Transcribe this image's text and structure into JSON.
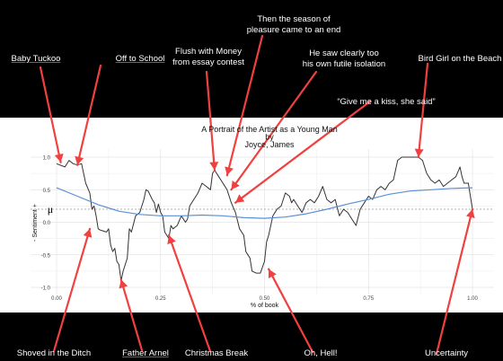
{
  "chart_data": {
    "type": "line",
    "title": "A Portrait of the Artist as a Young Man\nby\nJoyce, James",
    "xlabel": "% of book",
    "ylabel": "- Sentiment +",
    "xlim": [
      -0.05,
      1.05
    ],
    "ylim": [
      -1.08,
      1.12
    ],
    "xticks": [
      "0.00",
      "0.25",
      "0.50",
      "0.75",
      "1.00"
    ],
    "yticks": [
      "-1.0",
      "-0.5",
      "0.0",
      "0.5",
      "1.0"
    ],
    "grid": true,
    "mean_label": "μ",
    "mean_value": 0.2,
    "series": [
      {
        "style": "raw",
        "color": "#333333",
        "points": [
          [
            0.0,
            0.9
          ],
          [
            0.02,
            0.85
          ],
          [
            0.03,
            0.95
          ],
          [
            0.04,
            0.9
          ],
          [
            0.05,
            0.88
          ],
          [
            0.06,
            0.9
          ],
          [
            0.065,
            0.75
          ],
          [
            0.07,
            0.6
          ],
          [
            0.08,
            0.45
          ],
          [
            0.085,
            0.2
          ],
          [
            0.09,
            0.25
          ],
          [
            0.095,
            0.1
          ],
          [
            0.1,
            -0.1
          ],
          [
            0.105,
            -0.12
          ],
          [
            0.11,
            -0.13
          ],
          [
            0.12,
            -0.15
          ],
          [
            0.125,
            -0.1
          ],
          [
            0.13,
            -0.35
          ],
          [
            0.135,
            -0.45
          ],
          [
            0.14,
            -0.4
          ],
          [
            0.145,
            -0.6
          ],
          [
            0.15,
            -0.65
          ],
          [
            0.155,
            -0.9
          ],
          [
            0.16,
            -0.75
          ],
          [
            0.17,
            -0.55
          ],
          [
            0.175,
            -0.1
          ],
          [
            0.18,
            -0.15
          ],
          [
            0.19,
            0.1
          ],
          [
            0.2,
            0.15
          ],
          [
            0.21,
            0.35
          ],
          [
            0.215,
            0.5
          ],
          [
            0.22,
            0.48
          ],
          [
            0.23,
            0.35
          ],
          [
            0.235,
            0.3
          ],
          [
            0.24,
            0.15
          ],
          [
            0.245,
            0.28
          ],
          [
            0.25,
            0.15
          ],
          [
            0.255,
            0.1
          ],
          [
            0.26,
            -0.15
          ],
          [
            0.27,
            -0.25
          ],
          [
            0.275,
            -0.05
          ],
          [
            0.28,
            -0.1
          ],
          [
            0.29,
            -0.05
          ],
          [
            0.3,
            0.1
          ],
          [
            0.31,
            0.0
          ],
          [
            0.315,
            0.05
          ],
          [
            0.32,
            0.25
          ],
          [
            0.33,
            0.35
          ],
          [
            0.34,
            0.45
          ],
          [
            0.35,
            0.6
          ],
          [
            0.36,
            0.55
          ],
          [
            0.37,
            0.5
          ],
          [
            0.375,
            0.75
          ],
          [
            0.38,
            0.8
          ],
          [
            0.39,
            0.7
          ],
          [
            0.4,
            0.6
          ],
          [
            0.41,
            0.5
          ],
          [
            0.42,
            0.3
          ],
          [
            0.43,
            0.15
          ],
          [
            0.44,
            -0.1
          ],
          [
            0.45,
            -0.2
          ],
          [
            0.455,
            -0.45
          ],
          [
            0.46,
            -0.5
          ],
          [
            0.465,
            -0.55
          ],
          [
            0.47,
            -0.75
          ],
          [
            0.48,
            -0.78
          ],
          [
            0.49,
            -0.78
          ],
          [
            0.5,
            -0.6
          ],
          [
            0.505,
            -0.3
          ],
          [
            0.51,
            -0.2
          ],
          [
            0.52,
            0.1
          ],
          [
            0.53,
            0.2
          ],
          [
            0.54,
            0.25
          ],
          [
            0.55,
            0.45
          ],
          [
            0.56,
            0.4
          ],
          [
            0.565,
            0.3
          ],
          [
            0.57,
            0.35
          ],
          [
            0.58,
            0.25
          ],
          [
            0.59,
            0.15
          ],
          [
            0.6,
            0.3
          ],
          [
            0.61,
            0.35
          ],
          [
            0.62,
            0.3
          ],
          [
            0.63,
            0.4
          ],
          [
            0.64,
            0.55
          ],
          [
            0.65,
            0.35
          ],
          [
            0.66,
            0.3
          ],
          [
            0.67,
            0.35
          ],
          [
            0.68,
            0.1
          ],
          [
            0.69,
            0.2
          ],
          [
            0.7,
            0.15
          ],
          [
            0.71,
            0.05
          ],
          [
            0.72,
            -0.05
          ],
          [
            0.73,
            0.2
          ],
          [
            0.74,
            0.3
          ],
          [
            0.75,
            0.4
          ],
          [
            0.76,
            0.35
          ],
          [
            0.77,
            0.5
          ],
          [
            0.78,
            0.55
          ],
          [
            0.79,
            0.5
          ],
          [
            0.8,
            0.6
          ],
          [
            0.81,
            0.65
          ],
          [
            0.82,
            0.95
          ],
          [
            0.83,
            1.0
          ],
          [
            0.84,
            1.0
          ],
          [
            0.85,
            1.0
          ],
          [
            0.86,
            1.0
          ],
          [
            0.87,
            1.0
          ],
          [
            0.88,
            0.95
          ],
          [
            0.89,
            0.75
          ],
          [
            0.9,
            0.65
          ],
          [
            0.91,
            0.6
          ],
          [
            0.92,
            0.65
          ],
          [
            0.93,
            0.55
          ],
          [
            0.94,
            0.6
          ],
          [
            0.95,
            0.65
          ],
          [
            0.96,
            0.7
          ],
          [
            0.97,
            0.85
          ],
          [
            0.975,
            0.7
          ],
          [
            0.98,
            0.6
          ],
          [
            0.99,
            0.6
          ],
          [
            1.0,
            0.2
          ]
        ]
      },
      {
        "style": "smoothed",
        "color": "#5b8fd8",
        "points": [
          [
            0.0,
            0.53
          ],
          [
            0.05,
            0.4
          ],
          [
            0.1,
            0.27
          ],
          [
            0.15,
            0.17
          ],
          [
            0.2,
            0.12
          ],
          [
            0.25,
            0.1
          ],
          [
            0.3,
            0.1
          ],
          [
            0.35,
            0.11
          ],
          [
            0.4,
            0.1
          ],
          [
            0.45,
            0.07
          ],
          [
            0.5,
            0.06
          ],
          [
            0.55,
            0.08
          ],
          [
            0.6,
            0.13
          ],
          [
            0.65,
            0.2
          ],
          [
            0.7,
            0.28
          ],
          [
            0.75,
            0.35
          ],
          [
            0.8,
            0.43
          ],
          [
            0.85,
            0.48
          ],
          [
            0.9,
            0.5
          ],
          [
            0.95,
            0.52
          ],
          [
            1.0,
            0.53
          ]
        ]
      }
    ],
    "annotations": [
      {
        "text": "Baby Tuckoo",
        "x": 0.01,
        "y": 0.92
      },
      {
        "text": "Off to School",
        "x": 0.05,
        "y": 0.88
      },
      {
        "text": "Flush with Money\nfrom essay contest",
        "x": 0.38,
        "y": 0.8
      },
      {
        "text": "Then the season of\npleasure came to an end",
        "x": 0.41,
        "y": 0.72
      },
      {
        "text": "He saw clearly too\nhis own futile isolation",
        "x": 0.42,
        "y": 0.5
      },
      {
        "text": "“Give me a kiss, she said”",
        "x": 0.43,
        "y": 0.3
      },
      {
        "text": "Bird Girl on the Beach",
        "x": 0.87,
        "y": 1.0
      },
      {
        "text": "Shoved in the Ditch",
        "x": 0.08,
        "y": -0.1
      },
      {
        "text": "Father Arnel",
        "x": 0.155,
        "y": -0.88
      },
      {
        "text": "Christmas Break",
        "x": 0.27,
        "y": -0.2
      },
      {
        "text": "Oh, Hell!",
        "x": 0.51,
        "y": -0.72
      },
      {
        "text": "Uncertainty",
        "x": 1.0,
        "y": 0.2
      }
    ]
  }
}
